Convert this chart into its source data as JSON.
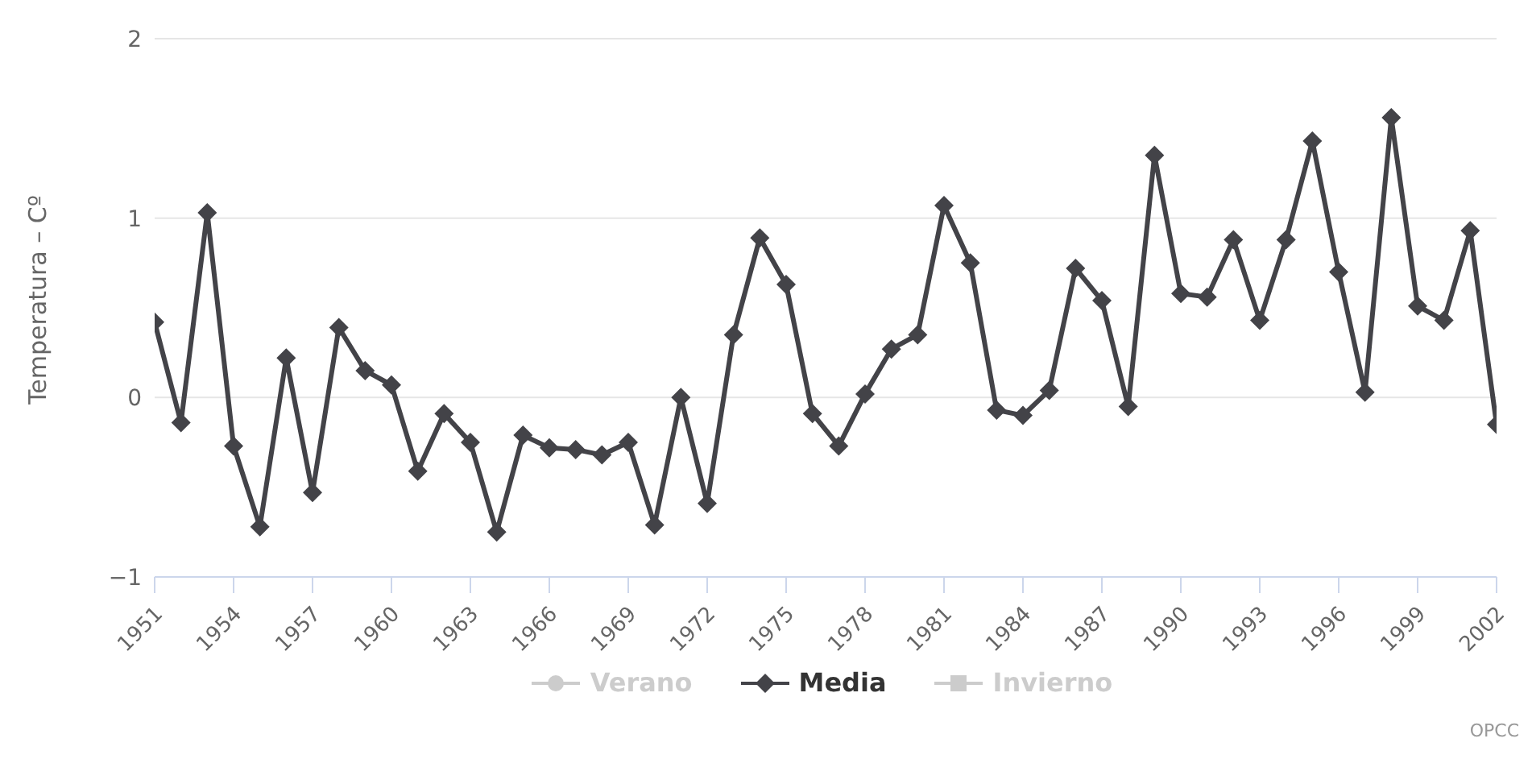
{
  "chart_data": {
    "type": "line",
    "ylabel": "Temperatura – Cº",
    "x": [
      1951,
      1952,
      1953,
      1954,
      1955,
      1956,
      1957,
      1958,
      1959,
      1960,
      1961,
      1962,
      1963,
      1964,
      1965,
      1966,
      1967,
      1968,
      1969,
      1970,
      1971,
      1972,
      1973,
      1974,
      1975,
      1976,
      1977,
      1978,
      1979,
      1980,
      1981,
      1982,
      1983,
      1984,
      1985,
      1986,
      1987,
      1988,
      1989,
      1990,
      1991,
      1992,
      1993,
      1994,
      1995,
      1996,
      1997,
      1998,
      1999,
      2000,
      2001,
      2002
    ],
    "series": [
      {
        "name": "Verano",
        "color": "#cccccc",
        "marker": "circle",
        "values": [
          null,
          null,
          null,
          null,
          null,
          null,
          null,
          null,
          null,
          null,
          null,
          null,
          null,
          null,
          null,
          null,
          null,
          null,
          null,
          null,
          null,
          null,
          null,
          null,
          null,
          null,
          null,
          null,
          null,
          null,
          null,
          null,
          null,
          null,
          null,
          null,
          null,
          null,
          null,
          null,
          null,
          null,
          null,
          null,
          null,
          null,
          null,
          null,
          null,
          null,
          null,
          null
        ]
      },
      {
        "name": "Media",
        "color": "#434348",
        "marker": "diamond",
        "values": [
          0.42,
          -0.14,
          1.03,
          -0.27,
          -0.72,
          0.22,
          -0.53,
          0.39,
          0.15,
          0.07,
          -0.41,
          -0.09,
          -0.25,
          -0.75,
          -0.21,
          -0.28,
          -0.29,
          -0.32,
          -0.25,
          -0.71,
          0.0,
          -0.59,
          0.35,
          0.89,
          0.63,
          -0.09,
          -0.27,
          0.02,
          0.27,
          0.35,
          1.07,
          0.75,
          -0.07,
          -0.1,
          0.04,
          0.72,
          0.54,
          -0.05,
          1.35,
          0.58,
          0.56,
          0.88,
          0.43,
          0.88,
          1.43,
          0.7,
          0.03,
          1.56,
          0.51,
          0.43,
          0.93,
          -0.15
        ]
      },
      {
        "name": "Invierno",
        "color": "#cccccc",
        "marker": "square",
        "values": [
          null,
          null,
          null,
          null,
          null,
          null,
          null,
          null,
          null,
          null,
          null,
          null,
          null,
          null,
          null,
          null,
          null,
          null,
          null,
          null,
          null,
          null,
          null,
          null,
          null,
          null,
          null,
          null,
          null,
          null,
          null,
          null,
          null,
          null,
          null,
          null,
          null,
          null,
          null,
          null,
          null,
          null,
          null,
          null,
          null,
          null,
          null,
          null,
          null,
          null,
          null,
          null
        ]
      }
    ],
    "xlim": [
      1951,
      2002
    ],
    "xticks": [
      1951,
      1954,
      1957,
      1960,
      1963,
      1966,
      1969,
      1972,
      1975,
      1978,
      1981,
      1984,
      1987,
      1990,
      1993,
      1996,
      1999,
      2002
    ],
    "ylim": [
      -1,
      2
    ],
    "yticks": [
      {
        "value": -1,
        "label": "−1"
      },
      0,
      1,
      2
    ],
    "grid": "y",
    "legend": "bottom",
    "line_style": "solid",
    "annotations": [
      "OPCC"
    ]
  }
}
